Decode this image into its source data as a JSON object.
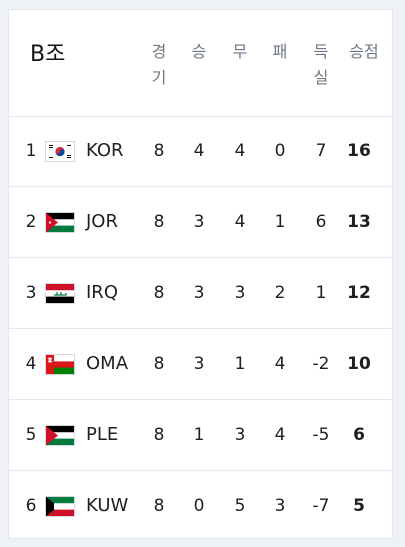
{
  "group_title": "B조",
  "headers": [
    "경\n기",
    "승",
    "무",
    "패",
    "득\n실",
    "승점"
  ],
  "rows": [
    {
      "rank": "1",
      "team": "KOR",
      "flag": "korea-flag-icon",
      "played": "8",
      "won": "4",
      "drawn": "4",
      "lost": "0",
      "gd": "7",
      "points": "16"
    },
    {
      "rank": "2",
      "team": "JOR",
      "flag": "jordan-flag-icon",
      "played": "8",
      "won": "3",
      "drawn": "4",
      "lost": "1",
      "gd": "6",
      "points": "13"
    },
    {
      "rank": "3",
      "team": "IRQ",
      "flag": "iraq-flag-icon",
      "played": "8",
      "won": "3",
      "drawn": "3",
      "lost": "2",
      "gd": "1",
      "points": "12"
    },
    {
      "rank": "4",
      "team": "OMA",
      "flag": "oman-flag-icon",
      "played": "8",
      "won": "3",
      "drawn": "1",
      "lost": "4",
      "gd": "-2",
      "points": "10"
    },
    {
      "rank": "5",
      "team": "PLE",
      "flag": "palestine-flag-icon",
      "played": "8",
      "won": "1",
      "drawn": "3",
      "lost": "4",
      "gd": "-5",
      "points": "6"
    },
    {
      "rank": "6",
      "team": "KUW",
      "flag": "kuwait-flag-icon",
      "played": "8",
      "won": "0",
      "drawn": "5",
      "lost": "3",
      "gd": "-7",
      "points": "5"
    }
  ]
}
